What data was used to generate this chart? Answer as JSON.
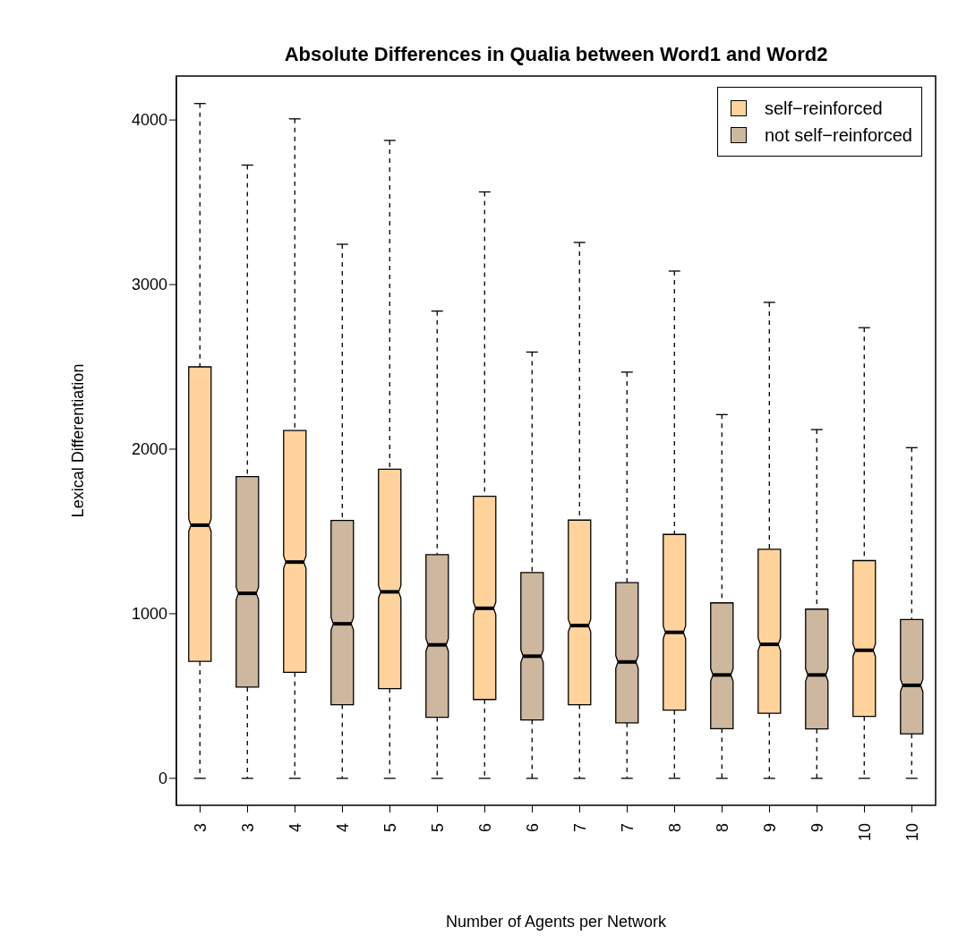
{
  "chart_data": {
    "type": "box",
    "title": "Absolute Differences in Qualia between Word1 and Word2",
    "xlabel": "Number of Agents per Network",
    "ylabel": "Lexical Differentiation",
    "categories": [
      "3",
      "3",
      "4",
      "4",
      "5",
      "5",
      "6",
      "6",
      "7",
      "7",
      "8",
      "8",
      "9",
      "9",
      "10",
      "10"
    ],
    "series": [
      {
        "name": "self−reinforced",
        "color": "#ffd39b",
        "boxes": [
          {
            "low": 0,
            "q1": 711,
            "median": 1538,
            "q3": 2500,
            "high": 4100
          },
          null,
          {
            "low": 0,
            "q1": 644,
            "median": 1314,
            "q3": 2113,
            "high": 4007
          },
          null,
          {
            "low": 0,
            "q1": 545,
            "median": 1133,
            "q3": 1878,
            "high": 3876
          },
          null,
          {
            "low": 0,
            "q1": 479,
            "median": 1033,
            "q3": 1714,
            "high": 3563
          },
          null,
          {
            "low": 0,
            "q1": 447,
            "median": 928,
            "q3": 1569,
            "high": 3256
          },
          null,
          {
            "low": 0,
            "q1": 414,
            "median": 887,
            "q3": 1482,
            "high": 3082
          },
          null,
          {
            "low": 0,
            "q1": 395,
            "median": 814,
            "q3": 1392,
            "high": 2892
          },
          null,
          {
            "low": 0,
            "q1": 376,
            "median": 778,
            "q3": 1323,
            "high": 2738
          },
          null
        ]
      },
      {
        "name": "not self−reinforced",
        "color": "#cdb79e",
        "boxes": [
          null,
          {
            "low": 0,
            "q1": 554,
            "median": 1124,
            "q3": 1833,
            "high": 3726
          },
          null,
          {
            "low": 0,
            "q1": 447,
            "median": 939,
            "q3": 1567,
            "high": 3245
          },
          null,
          {
            "low": 0,
            "q1": 371,
            "median": 811,
            "q3": 1359,
            "high": 2839
          },
          null,
          {
            "low": 0,
            "q1": 355,
            "median": 742,
            "q3": 1250,
            "high": 2590
          },
          null,
          {
            "low": 0,
            "q1": 337,
            "median": 707,
            "q3": 1189,
            "high": 2468
          },
          null,
          {
            "low": 0,
            "q1": 302,
            "median": 628,
            "q3": 1066,
            "high": 2210
          },
          null,
          {
            "low": 0,
            "q1": 300,
            "median": 628,
            "q3": 1028,
            "high": 2119
          },
          null,
          {
            "low": 0,
            "q1": 270,
            "median": 565,
            "q3": 965,
            "high": 2009
          }
        ]
      }
    ],
    "ylim": [
      -164,
      4267
    ],
    "yticks": [
      0,
      1000,
      2000,
      3000,
      4000
    ],
    "legend": "top right"
  }
}
